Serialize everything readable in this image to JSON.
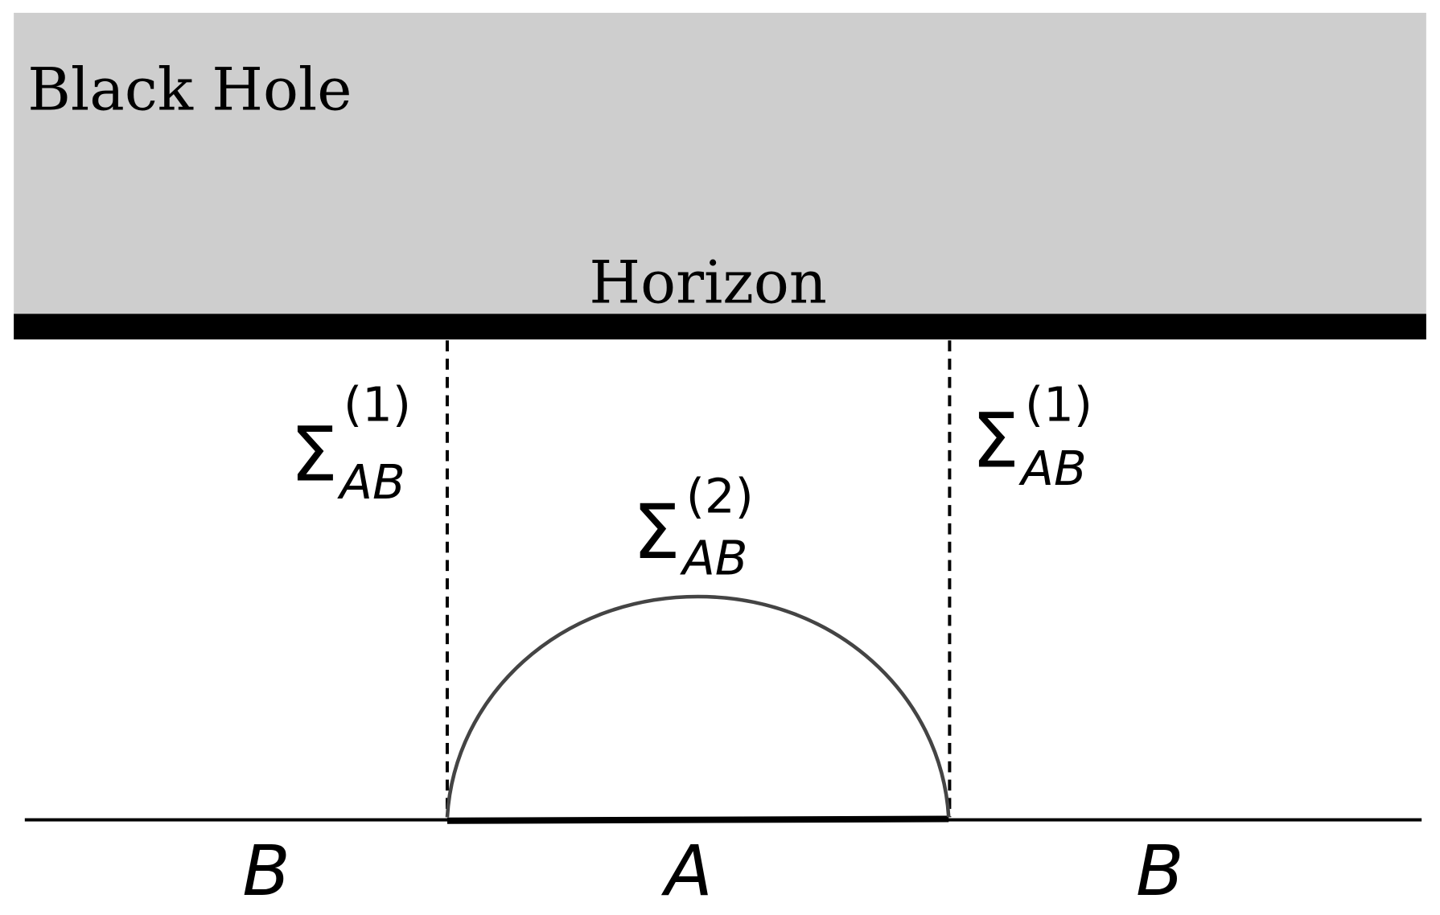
{
  "region_label": "Black Hole",
  "horizon_label": "Horizon",
  "colors": {
    "black_hole_fill": "#cecece",
    "horizon": "#000000",
    "surface_curve": "#444444"
  },
  "surfaces": [
    {
      "symbol": "Σ",
      "superscript": "(1)",
      "subscript": "AB"
    },
    {
      "symbol": "Σ",
      "superscript": "(1)",
      "subscript": "AB"
    },
    {
      "symbol": "Σ",
      "superscript": "(2)",
      "subscript": "AB"
    }
  ],
  "boundary_labels": {
    "left": "B",
    "center": "A",
    "right": "B"
  }
}
